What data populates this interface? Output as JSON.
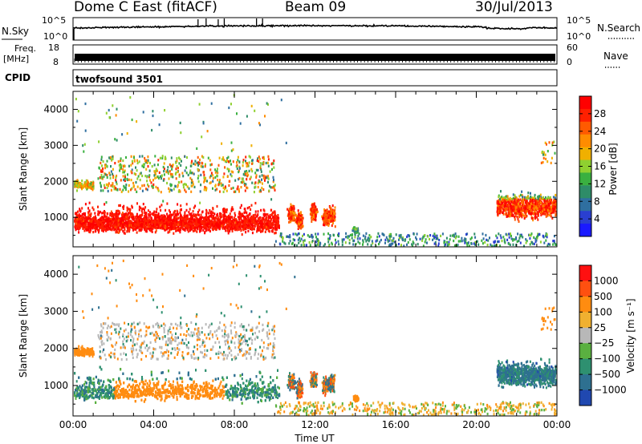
{
  "header": {
    "title": "Dome C East (fitACF)",
    "beam": "Beam 09",
    "date": "30/Jul/2013"
  },
  "strips": {
    "nsky_label": "N.Sky",
    "nsky_ticks": [
      "10^5",
      "10^0"
    ],
    "nsearch_label": "N.Search",
    "nsearch_ticks": [
      "10^5",
      "10^0"
    ],
    "freq_label": "Freq.",
    "freq_unit": "[MHz]",
    "freq_ticks": [
      "18",
      "8"
    ],
    "nave_label": "Nave",
    "nave_ticks": [
      "60",
      "0"
    ],
    "cpid_label": "CPID",
    "cpid_value": "twofsound 3501"
  },
  "chart_data": [
    {
      "type": "heatmap",
      "name": "power",
      "ylabel": "Slant Range [km]",
      "xlabel": "",
      "x_ticks": [
        "00:00",
        "04:00",
        "08:00",
        "12:00",
        "16:00",
        "20:00",
        "00:00"
      ],
      "y_ticks": [
        1000,
        2000,
        3000,
        4000
      ],
      "xlim_hours": [
        0,
        24
      ],
      "ylim_km": [
        180,
        4500
      ],
      "colorbar": {
        "label": "Power [dB]",
        "ticks": [
          "28",
          "24",
          "20",
          "16",
          "12",
          "8",
          "4"
        ],
        "range": [
          0,
          32
        ],
        "colors": [
          "#1a1aff",
          "#2a3fd0",
          "#2f6fa0",
          "#2e8c68",
          "#3ab040",
          "#8fd030",
          "#f0b000",
          "#ff8c00",
          "#ff5a00",
          "#ff2000",
          "#ff0000"
        ]
      }
    },
    {
      "type": "heatmap",
      "name": "velocity",
      "ylabel": "Slant Range [km]",
      "xlabel": "Time UT",
      "x_ticks": [
        "00:00",
        "04:00",
        "08:00",
        "12:00",
        "16:00",
        "20:00",
        "00:00"
      ],
      "y_ticks": [
        1000,
        2000,
        3000,
        4000
      ],
      "xlim_hours": [
        0,
        24
      ],
      "ylim_km": [
        180,
        4500
      ],
      "colorbar": {
        "label": "Velocity [m s⁻¹]",
        "ticks": [
          "1000",
          "500",
          "100",
          "25",
          "−25",
          "−100",
          "−500",
          "−1000"
        ],
        "range": [
          -1200,
          1200
        ],
        "colors": [
          "#2048b0",
          "#2e7090",
          "#2e9070",
          "#5ab040",
          "#b8b8b8",
          "#f0b030",
          "#ff8c10",
          "#ff5010",
          "#ff1010"
        ]
      }
    }
  ]
}
